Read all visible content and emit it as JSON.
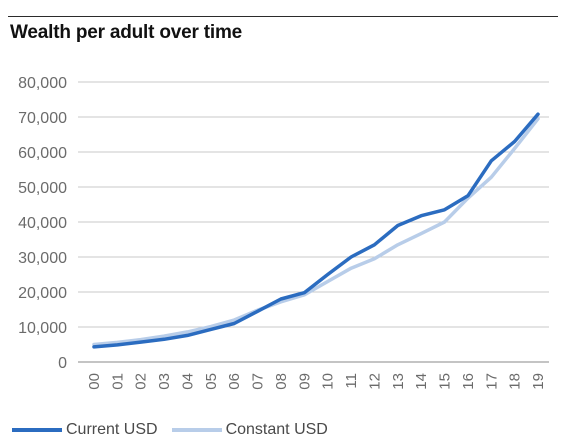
{
  "title": "Wealth per adult over time",
  "colors": {
    "current": "#2b6cc0",
    "constant": "#b8cde9",
    "grid": "#c9c9c9",
    "axis": "#8a8a8a"
  },
  "chart_data": {
    "type": "line",
    "title": "Wealth per adult over time",
    "xlabel": "",
    "ylabel": "",
    "x": [
      "00",
      "01",
      "02",
      "03",
      "04",
      "05",
      "06",
      "07",
      "08",
      "09",
      "10",
      "11",
      "12",
      "13",
      "14",
      "15",
      "16",
      "17",
      "18",
      "19"
    ],
    "ylim": [
      0,
      80000
    ],
    "yticks": [
      0,
      10000,
      20000,
      30000,
      40000,
      50000,
      60000,
      70000,
      80000
    ],
    "ytick_labels": [
      "0",
      "10,000",
      "20,000",
      "30,000",
      "40,000",
      "50,000",
      "60,000",
      "70,000",
      "80,000"
    ],
    "grid": "horizontal",
    "legend": "bottom",
    "series": [
      {
        "name": "Current USD",
        "values": [
          4300,
          4900,
          5700,
          6500,
          7600,
          9300,
          11000,
          14500,
          18000,
          19800,
          25000,
          30000,
          33500,
          39000,
          41800,
          43500,
          47500,
          57500,
          63000,
          70800
        ]
      },
      {
        "name": "Constant USD",
        "values": [
          5000,
          5600,
          6400,
          7400,
          8600,
          10100,
          12000,
          14800,
          17200,
          19200,
          23000,
          26800,
          29500,
          33500,
          36700,
          40000,
          46800,
          52800,
          61000,
          69500
        ]
      }
    ]
  }
}
